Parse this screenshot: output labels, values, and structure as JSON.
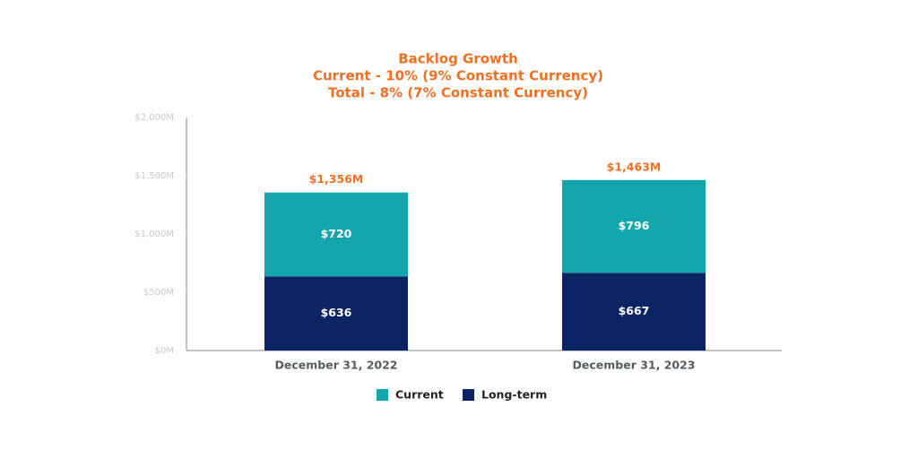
{
  "chart_data": {
    "type": "stacked-bar",
    "title": "Backlog Growth",
    "subtitle": [
      "Current - 10% (9% Constant Currency)",
      "Total - 8% (7% Constant Currency)"
    ],
    "categories": [
      "December 31, 2022",
      "December 31, 2023"
    ],
    "series": [
      {
        "name": "Current",
        "color": "#13a6ad",
        "values": [
          720,
          796
        ],
        "value_labels": [
          "$720",
          "$796"
        ]
      },
      {
        "name": "Long-term",
        "color": "#0b2463",
        "values": [
          636,
          667
        ],
        "value_labels": [
          "$636",
          "$667"
        ]
      }
    ],
    "totals": {
      "values": [
        1356,
        1463
      ],
      "value_labels": [
        "$1,356M",
        "$1,463M"
      ]
    },
    "ylim": [
      0,
      2000
    ],
    "yticks": [
      {
        "value": 0,
        "label": "$0M"
      },
      {
        "value": 500,
        "label": "$500M"
      },
      {
        "value": 1000,
        "label": "$1,000M"
      },
      {
        "value": 1500,
        "label": "$1,500M"
      },
      {
        "value": 2000,
        "label": "$2,000M"
      }
    ],
    "grid": false
  }
}
